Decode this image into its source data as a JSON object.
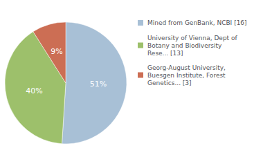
{
  "chart_data": {
    "type": "pie",
    "categories": [
      "Mined from GenBank, NCBI [16]",
      "University of Vienna, Dept of\nBotany and Biodiversity\nRese... [13]",
      "Georg-August University,\nBuesgen Institute, Forest\nGenetics... [3]"
    ],
    "values": [
      51,
      40,
      9
    ],
    "value_labels": [
      "51%",
      "40%",
      "9%"
    ],
    "colors": [
      "#a8c0d6",
      "#9dc06b",
      "#cc6e54"
    ],
    "data_labels": true,
    "legend": "right"
  }
}
